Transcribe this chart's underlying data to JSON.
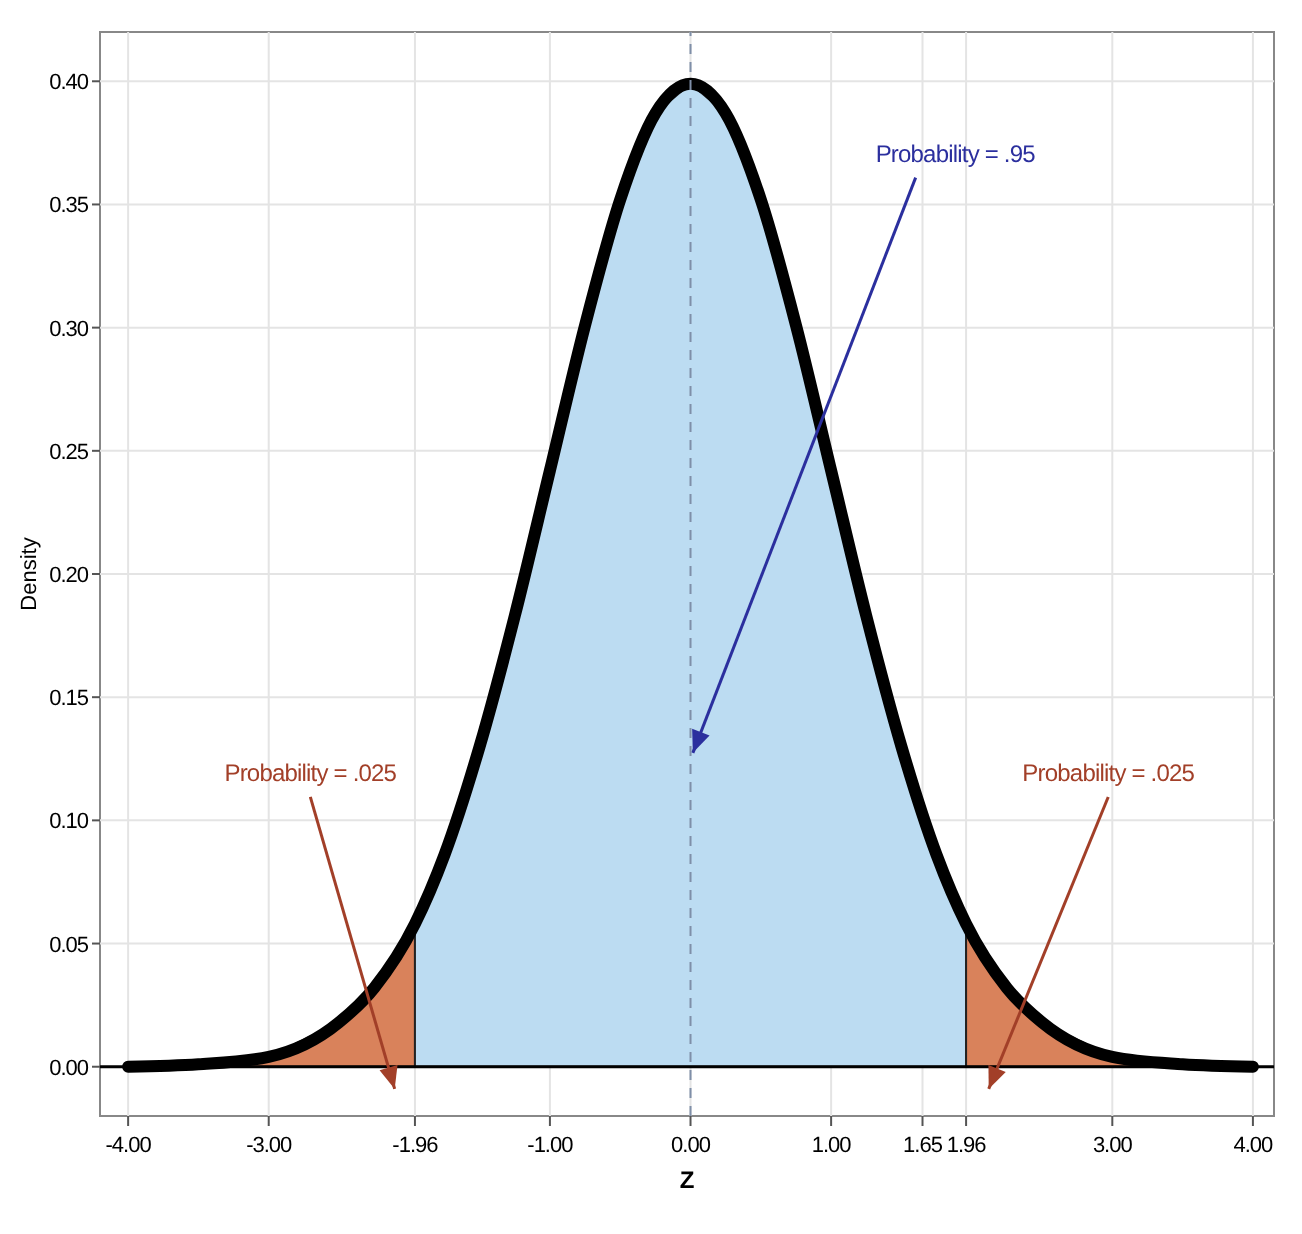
{
  "chart_data": {
    "type": "area",
    "xlabel": "Z",
    "ylabel": "Density",
    "xlim": [
      -4.2,
      4.15
    ],
    "ylim": [
      -0.02,
      0.42
    ],
    "xticks": [
      {
        "value": -4,
        "label": "-4.00"
      },
      {
        "value": -3,
        "label": "-3.00"
      },
      {
        "value": -1.96,
        "label": "-1.96"
      },
      {
        "value": -1,
        "label": "-1.00"
      },
      {
        "value": 0,
        "label": "0.00"
      },
      {
        "value": 1,
        "label": "1.00"
      },
      {
        "value": 1.65,
        "label": "1.65"
      },
      {
        "value": 1.96,
        "label": "1.96"
      },
      {
        "value": 3,
        "label": "3.00"
      },
      {
        "value": 4,
        "label": "4.00"
      }
    ],
    "yticks": [
      {
        "value": 0,
        "label": "0.00"
      },
      {
        "value": 0.05,
        "label": "0.05"
      },
      {
        "value": 0.1,
        "label": "0.10"
      },
      {
        "value": 0.15,
        "label": "0.15"
      },
      {
        "value": 0.2,
        "label": "0.20"
      },
      {
        "value": 0.25,
        "label": "0.25"
      },
      {
        "value": 0.3,
        "label": "0.30"
      },
      {
        "value": 0.35,
        "label": "0.35"
      },
      {
        "value": 0.4,
        "label": "0.40"
      }
    ],
    "grid": true,
    "series": [
      {
        "color": "#d9825b",
        "x": [
          -4,
          -3.5,
          -3,
          -2.5,
          -2.25,
          -1.96
        ],
        "values": [
          0.0,
          0.001,
          0.004,
          0.018,
          0.032,
          0.058
        ]
      },
      {
        "color": "#bcdcf2",
        "x": [
          -1.96,
          -1.75,
          -1.5,
          -1.25,
          -1,
          -0.75,
          -0.5,
          -0.25,
          0,
          0.25,
          0.5,
          0.75,
          1,
          1.25,
          1.5,
          1.75,
          1.96
        ],
        "values": [
          0.058,
          0.086,
          0.13,
          0.183,
          0.242,
          0.301,
          0.352,
          0.387,
          0.399,
          0.387,
          0.352,
          0.301,
          0.242,
          0.183,
          0.13,
          0.086,
          0.058
        ]
      },
      {
        "color": "#d9825b",
        "x": [
          1.96,
          2.25,
          2.5,
          3,
          3.5,
          4
        ],
        "values": [
          0.058,
          0.032,
          0.018,
          0.004,
          0.001,
          0.0
        ]
      },
      {
        "type": "line",
        "color": "#000000",
        "x": [
          -4,
          -3.5,
          -3,
          -2.5,
          -2.25,
          -1.96,
          -1.75,
          -1.5,
          -1.25,
          -1,
          -0.75,
          -0.5,
          -0.25,
          0,
          0.25,
          0.5,
          0.75,
          1,
          1.25,
          1.5,
          1.75,
          1.96,
          2.25,
          2.5,
          3,
          3.5,
          4
        ],
        "values": [
          0.0,
          0.001,
          0.004,
          0.018,
          0.032,
          0.058,
          0.086,
          0.13,
          0.183,
          0.242,
          0.301,
          0.352,
          0.387,
          0.399,
          0.387,
          0.352,
          0.301,
          0.242,
          0.183,
          0.13,
          0.086,
          0.058,
          0.032,
          0.018,
          0.004,
          0.001,
          0.0
        ]
      }
    ],
    "ref_lines": [
      {
        "axis": "x",
        "value": 0,
        "color": "#7f8fa8",
        "line_style": "dashed"
      },
      {
        "axis": "y",
        "value": 0,
        "color": "#000000",
        "line_style": "solid"
      }
    ],
    "annotations": [
      "Probability = .95",
      "Probability = .025",
      "Probability = .025"
    ]
  }
}
